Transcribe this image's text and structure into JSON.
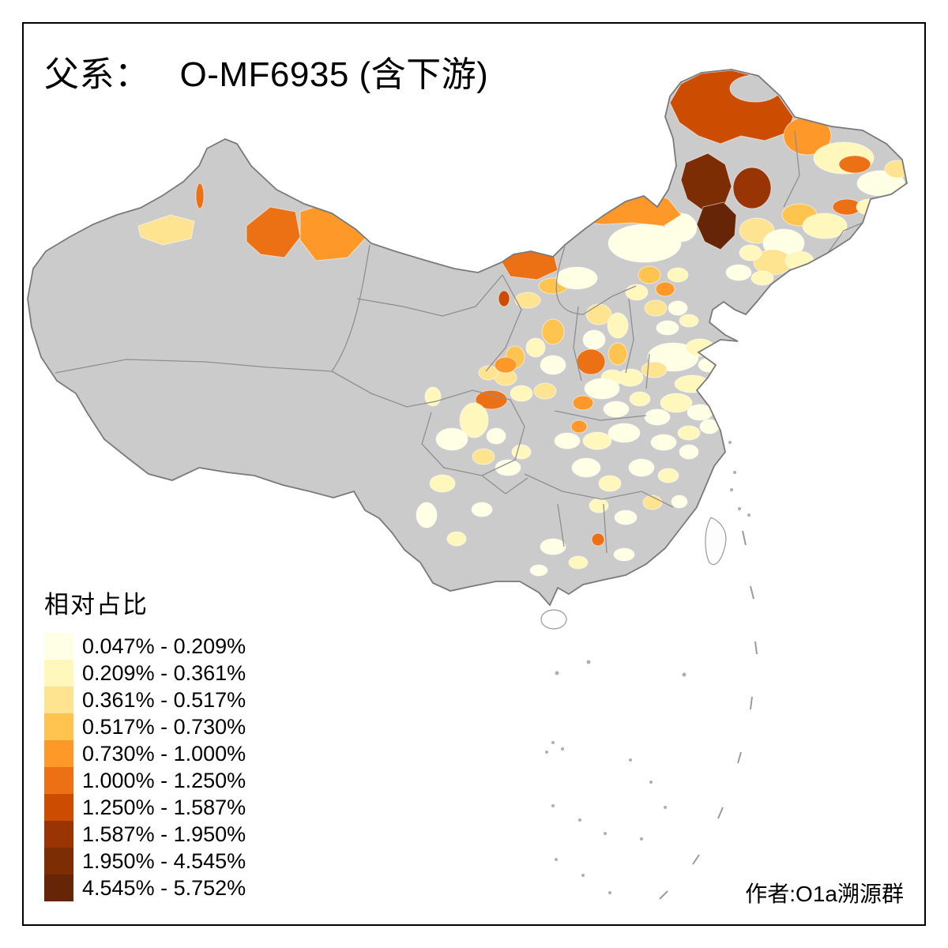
{
  "title": {
    "prefix": "父系：",
    "name": "O-MF6935 (含下游)"
  },
  "legend": {
    "title": "相对占比",
    "items": [
      {
        "label": "0.047% - 0.209%",
        "color": "#FFFFE5"
      },
      {
        "label": "0.209% - 0.361%",
        "color": "#FFF7BC"
      },
      {
        "label": "0.361% - 0.517%",
        "color": "#FEE391"
      },
      {
        "label": "0.517% - 0.730%",
        "color": "#FEC44F"
      },
      {
        "label": "0.730% - 1.000%",
        "color": "#FE9929"
      },
      {
        "label": "1.000% - 1.250%",
        "color": "#EC7014"
      },
      {
        "label": "1.250% - 1.587%",
        "color": "#CC4C02"
      },
      {
        "label": "1.587% - 1.950%",
        "color": "#993404"
      },
      {
        "label": "1.950% - 4.545%",
        "color": "#7C2D04"
      },
      {
        "label": "4.545% - 5.752%",
        "color": "#662506"
      }
    ]
  },
  "attribution": "作者:O1a溯源群",
  "map": {
    "no_data_color": "#CBCBCB",
    "border_color": "#7A7A7A",
    "province_line_color": "#8F8F8F",
    "sea_color": "#FFFFFF",
    "regions": [
      {
        "name": "hulunbuir",
        "cls": 7,
        "poly": [
          [
            848,
            130
          ],
          [
            862,
            106
          ],
          [
            888,
            93
          ],
          [
            926,
            89
          ],
          [
            958,
            97
          ],
          [
            986,
            122
          ],
          [
            1004,
            148
          ],
          [
            996,
            168
          ],
          [
            968,
            178
          ],
          [
            938,
            172
          ],
          [
            912,
            182
          ],
          [
            884,
            172
          ],
          [
            860,
            155
          ]
        ]
      },
      {
        "name": "hulunbuir-inner-nodata",
        "cls": 0,
        "ell": [
          956,
          112,
          32,
          17
        ]
      },
      {
        "name": "heihe",
        "cls": 5,
        "ell": [
          1022,
          172,
          30,
          24
        ]
      },
      {
        "name": "suihua",
        "cls": 2,
        "ell": [
          1068,
          200,
          38,
          20
        ]
      },
      {
        "name": "heilongjiang-orange",
        "cls": 6,
        "ell": [
          1082,
          208,
          20,
          11
        ]
      },
      {
        "name": "jiamusi",
        "cls": 1,
        "ell": [
          1115,
          232,
          30,
          16
        ]
      },
      {
        "name": "hegang",
        "cls": 3,
        "ell": [
          1136,
          214,
          16,
          11
        ]
      },
      {
        "name": "hinggan",
        "cls": 9,
        "poly": [
          [
            868,
            206
          ],
          [
            896,
            194
          ],
          [
            918,
            208
          ],
          [
            926,
            236
          ],
          [
            916,
            262
          ],
          [
            892,
            268
          ],
          [
            870,
            252
          ],
          [
            862,
            228
          ]
        ]
      },
      {
        "name": "songyuan",
        "cls": 8,
        "ell": [
          952,
          238,
          24,
          26
        ]
      },
      {
        "name": "tongliao",
        "cls": 10,
        "poly": [
          [
            890,
            262
          ],
          [
            916,
            256
          ],
          [
            932,
            272
          ],
          [
            930,
            298
          ],
          [
            912,
            316
          ],
          [
            892,
            306
          ],
          [
            882,
            284
          ]
        ]
      },
      {
        "name": "chifeng",
        "cls": 1,
        "ell": [
          862,
          288,
          20,
          18
        ]
      },
      {
        "name": "xilingol",
        "cls": 5,
        "poly": [
          [
            736,
            268
          ],
          [
            772,
            246
          ],
          [
            812,
            240
          ],
          [
            846,
            252
          ],
          [
            862,
            272
          ],
          [
            840,
            286
          ],
          [
            800,
            282
          ],
          [
            764,
            284
          ],
          [
            742,
            282
          ]
        ]
      },
      {
        "name": "ulanqab",
        "cls": 1,
        "ell": [
          816,
          308,
          46,
          24
        ]
      },
      {
        "name": "r13",
        "cls": 3,
        "ell": [
          958,
          292,
          22,
          16
        ]
      },
      {
        "name": "r14",
        "cls": 1,
        "ell": [
          992,
          308,
          26,
          18
        ]
      },
      {
        "name": "r15",
        "cls": 4,
        "ell": [
          1012,
          272,
          22,
          14
        ]
      },
      {
        "name": "r16",
        "cls": 2,
        "ell": [
          1044,
          286,
          28,
          16
        ]
      },
      {
        "name": "yanbian",
        "cls": 6,
        "ell": [
          1072,
          262,
          18,
          10
        ]
      },
      {
        "name": "r18",
        "cls": 2,
        "ell": [
          1100,
          262,
          16,
          10
        ]
      },
      {
        "name": "r19",
        "cls": 3,
        "ell": [
          978,
          332,
          24,
          16
        ]
      },
      {
        "name": "r20",
        "cls": 2,
        "ell": [
          1012,
          330,
          18,
          12
        ]
      },
      {
        "name": "r21",
        "cls": 2,
        "ell": [
          950,
          320,
          14,
          10
        ]
      },
      {
        "name": "r22",
        "cls": 1,
        "ell": [
          935,
          345,
          16,
          10
        ]
      },
      {
        "name": "r23",
        "cls": 2,
        "ell": [
          965,
          352,
          14,
          9
        ]
      },
      {
        "name": "altay-west",
        "cls": 6,
        "poly": [
          [
            312,
            286
          ],
          [
            342,
            262
          ],
          [
            374,
            268
          ],
          [
            380,
            300
          ],
          [
            360,
            326
          ],
          [
            330,
            322
          ],
          [
            312,
            306
          ]
        ]
      },
      {
        "name": "altay-east",
        "cls": 5,
        "poly": [
          [
            380,
            268
          ],
          [
            424,
            254
          ],
          [
            458,
            272
          ],
          [
            464,
            300
          ],
          [
            440,
            326
          ],
          [
            400,
            330
          ],
          [
            380,
            304
          ]
        ]
      },
      {
        "name": "yili-sliver",
        "cls": 6,
        "ell": [
          253,
          248,
          5,
          16
        ]
      },
      {
        "name": "bortala",
        "cls": 3,
        "poly": [
          [
            175,
            286
          ],
          [
            216,
            272
          ],
          [
            246,
            280
          ],
          [
            242,
            302
          ],
          [
            206,
            310
          ],
          [
            178,
            300
          ]
        ]
      },
      {
        "name": "alxa-east",
        "cls": 6,
        "poly": [
          [
            634,
            330
          ],
          [
            662,
            312
          ],
          [
            700,
            318
          ],
          [
            706,
            342
          ],
          [
            680,
            354
          ],
          [
            646,
            350
          ]
        ]
      },
      {
        "name": "r29",
        "cls": 4,
        "ell": [
          700,
          362,
          18,
          10
        ]
      },
      {
        "name": "r30",
        "cls": 3,
        "ell": [
          668,
          380,
          16,
          10
        ]
      },
      {
        "name": "r31",
        "cls": 7,
        "ell": [
          638,
          378,
          7,
          10
        ]
      },
      {
        "name": "r32",
        "cls": 1,
        "ell": [
          730,
          352,
          26,
          14
        ]
      },
      {
        "name": "r34",
        "cls": 4,
        "ell": [
          822,
          348,
          14,
          11
        ]
      },
      {
        "name": "beijing",
        "cls": 5,
        "ell": [
          842,
          366,
          12,
          9
        ]
      },
      {
        "name": "r36",
        "cls": 2,
        "ell": [
          858,
          348,
          13,
          9
        ]
      },
      {
        "name": "r37",
        "cls": 2,
        "ell": [
          806,
          370,
          14,
          10
        ]
      },
      {
        "name": "r38",
        "cls": 3,
        "ell": [
          830,
          390,
          14,
          10
        ]
      },
      {
        "name": "tianjin",
        "cls": 1,
        "ell": [
          858,
          390,
          12,
          9
        ]
      },
      {
        "name": "r40",
        "cls": 2,
        "ell": [
          872,
          406,
          12,
          8
        ]
      },
      {
        "name": "r41",
        "cls": 1,
        "ell": [
          845,
          415,
          14,
          9
        ]
      },
      {
        "name": "r42",
        "cls": 3,
        "ell": [
          758,
          398,
          16,
          13
        ]
      },
      {
        "name": "r43",
        "cls": 2,
        "ell": [
          782,
          412,
          13,
          16
        ]
      },
      {
        "name": "r44",
        "cls": 1,
        "ell": [
          752,
          430,
          14,
          12
        ]
      },
      {
        "name": "linfen",
        "cls": 6,
        "ell": [
          748,
          458,
          18,
          16
        ]
      },
      {
        "name": "r46",
        "cls": 4,
        "ell": [
          782,
          448,
          12,
          14
        ]
      },
      {
        "name": "r47",
        "cls": 2,
        "ell": [
          775,
          478,
          14,
          10
        ]
      },
      {
        "name": "r48",
        "cls": 4,
        "ell": [
          700,
          420,
          14,
          16
        ]
      },
      {
        "name": "r49",
        "cls": 2,
        "ell": [
          678,
          440,
          12,
          12
        ]
      },
      {
        "name": "r50",
        "cls": 1,
        "ell": [
          700,
          462,
          16,
          12
        ]
      },
      {
        "name": "r51",
        "cls": 4,
        "ell": [
          652,
          452,
          12,
          14
        ]
      },
      {
        "name": "r52",
        "cls": 3,
        "ell": [
          640,
          478,
          14,
          10
        ]
      },
      {
        "name": "tianshui",
        "cls": 6,
        "ell": [
          622,
          506,
          20,
          12
        ]
      },
      {
        "name": "r54",
        "cls": 2,
        "ell": [
          660,
          498,
          14,
          10
        ]
      },
      {
        "name": "r55",
        "cls": 3,
        "ell": [
          690,
          495,
          14,
          10
        ]
      },
      {
        "name": "r56",
        "cls": 1,
        "ell": [
          852,
          452,
          32,
          18
        ]
      },
      {
        "name": "r57",
        "cls": 2,
        "ell": [
          886,
          440,
          18,
          11
        ]
      },
      {
        "name": "r58",
        "cls": 3,
        "ell": [
          828,
          468,
          16,
          10
        ]
      },
      {
        "name": "r59",
        "cls": 2,
        "ell": [
          876,
          486,
          22,
          11
        ]
      },
      {
        "name": "r60",
        "cls": 1,
        "ell": [
          898,
          462,
          14,
          9
        ]
      },
      {
        "name": "r61",
        "cls": 1,
        "ell": [
          762,
          492,
          22,
          13
        ]
      },
      {
        "name": "zhengzhou",
        "cls": 5,
        "ell": [
          738,
          510,
          13,
          9
        ]
      },
      {
        "name": "r62",
        "cls": 2,
        "ell": [
          798,
          478,
          16,
          11
        ]
      },
      {
        "name": "r64",
        "cls": 1,
        "ell": [
          780,
          518,
          16,
          10
        ]
      },
      {
        "name": "r65",
        "cls": 2,
        "ell": [
          810,
          505,
          13,
          9
        ]
      },
      {
        "name": "r66",
        "cls": 2,
        "ell": [
          856,
          510,
          20,
          12
        ]
      },
      {
        "name": "r67",
        "cls": 1,
        "ell": [
          886,
          522,
          16,
          10
        ]
      },
      {
        "name": "r68",
        "cls": 1,
        "ell": [
          832,
          528,
          16,
          10
        ]
      },
      {
        "name": "r69",
        "cls": 2,
        "ell": [
          872,
          548,
          14,
          9
        ]
      },
      {
        "name": "r70",
        "cls": 1,
        "ell": [
          898,
          540,
          12,
          9
        ]
      },
      {
        "name": "r71",
        "cls": 1,
        "ell": [
          840,
          560,
          16,
          10
        ]
      },
      {
        "name": "r72",
        "cls": 1,
        "ell": [
          790,
          548,
          20,
          12
        ]
      },
      {
        "name": "r73",
        "cls": 2,
        "ell": [
          756,
          558,
          18,
          11
        ]
      },
      {
        "name": "r74",
        "cls": 1,
        "ell": [
          718,
          558,
          16,
          10
        ]
      },
      {
        "name": "r75",
        "cls": 5,
        "ell": [
          733,
          540,
          10,
          8
        ]
      },
      {
        "name": "guangyuan",
        "cls": 5,
        "ell": [
          640,
          462,
          14,
          10
        ]
      },
      {
        "name": "r77",
        "cls": 3,
        "ell": [
          618,
          472,
          12,
          9
        ]
      },
      {
        "name": "chengdu-area",
        "cls": 2,
        "ell": [
          600,
          532,
          18,
          22
        ]
      },
      {
        "name": "r79",
        "cls": 1,
        "ell": [
          572,
          556,
          20,
          14
        ]
      },
      {
        "name": "r80",
        "cls": 3,
        "ell": [
          612,
          578,
          14,
          10
        ]
      },
      {
        "name": "chongqing",
        "cls": 1,
        "ell": [
          643,
          592,
          16,
          10
        ]
      },
      {
        "name": "r82",
        "cls": 1,
        "ell": [
          628,
          552,
          12,
          10
        ]
      },
      {
        "name": "r83",
        "cls": 2,
        "ell": [
          660,
          572,
          12,
          9
        ]
      },
      {
        "name": "r85",
        "cls": 2,
        "ell": [
          548,
          502,
          10,
          12
        ]
      },
      {
        "name": "r86",
        "cls": 2,
        "ell": [
          560,
          612,
          16,
          11
        ]
      },
      {
        "name": "r87",
        "cls": 1,
        "ell": [
          540,
          652,
          13,
          16
        ]
      },
      {
        "name": "r88",
        "cls": 2,
        "ell": [
          578,
          682,
          12,
          9
        ]
      },
      {
        "name": "r89",
        "cls": 1,
        "ell": [
          610,
          645,
          13,
          9
        ]
      },
      {
        "name": "r91",
        "cls": 1,
        "ell": [
          742,
          592,
          18,
          12
        ]
      },
      {
        "name": "r92",
        "cls": 2,
        "ell": [
          772,
          612,
          14,
          10
        ]
      },
      {
        "name": "r93",
        "cls": 1,
        "ell": [
          812,
          592,
          16,
          11
        ]
      },
      {
        "name": "r94",
        "cls": 2,
        "ell": [
          846,
          602,
          13,
          9
        ]
      },
      {
        "name": "r95",
        "cls": 1,
        "ell": [
          872,
          572,
          12,
          9
        ]
      },
      {
        "name": "r96",
        "cls": 3,
        "ell": [
          826,
          636,
          12,
          9
        ]
      },
      {
        "name": "r97",
        "cls": 1,
        "ell": [
          792,
          655,
          14,
          9
        ]
      },
      {
        "name": "r98",
        "cls": 2,
        "ell": [
          758,
          640,
          12,
          9
        ]
      },
      {
        "name": "r99",
        "cls": 1,
        "ell": [
          860,
          635,
          10,
          8
        ]
      },
      {
        "name": "wuzhou-orange",
        "cls": 6,
        "ell": [
          757,
          683,
          8,
          8
        ]
      },
      {
        "name": "r101",
        "cls": 1,
        "ell": [
          700,
          692,
          16,
          10
        ]
      },
      {
        "name": "r102",
        "cls": 2,
        "ell": [
          732,
          712,
          12,
          8
        ]
      },
      {
        "name": "r103",
        "cls": 1,
        "ell": [
          790,
          702,
          13,
          8
        ]
      },
      {
        "name": "r104",
        "cls": 1,
        "ell": [
          682,
          722,
          11,
          7
        ]
      }
    ]
  }
}
